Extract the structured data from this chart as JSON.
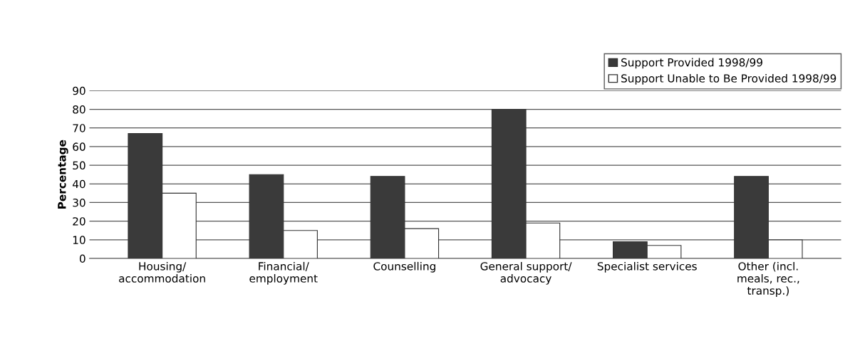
{
  "chart_data": {
    "type": "bar",
    "ylabel": "Percentage",
    "categories": [
      "Housing/\naccommodation",
      "Financial/\nemployment",
      "Counselling",
      "General support/\nadvocacy",
      "Specialist services",
      "Other (incl.\nmeals, rec.,\ntransp.)"
    ],
    "series": [
      {
        "name": "Support Provided 1998/99",
        "color": "#3a3a3a",
        "values": [
          67,
          45,
          44,
          80,
          9,
          44
        ]
      },
      {
        "name": "Support Unable to Be Provided 1998/99",
        "color": "#ffffff",
        "values": [
          35,
          15,
          16,
          19,
          7,
          10
        ]
      }
    ],
    "ylim": [
      0,
      90
    ],
    "yticks": [
      0,
      10,
      20,
      30,
      40,
      50,
      60,
      70,
      80,
      90
    ],
    "grid": "y",
    "legend": "top right"
  }
}
